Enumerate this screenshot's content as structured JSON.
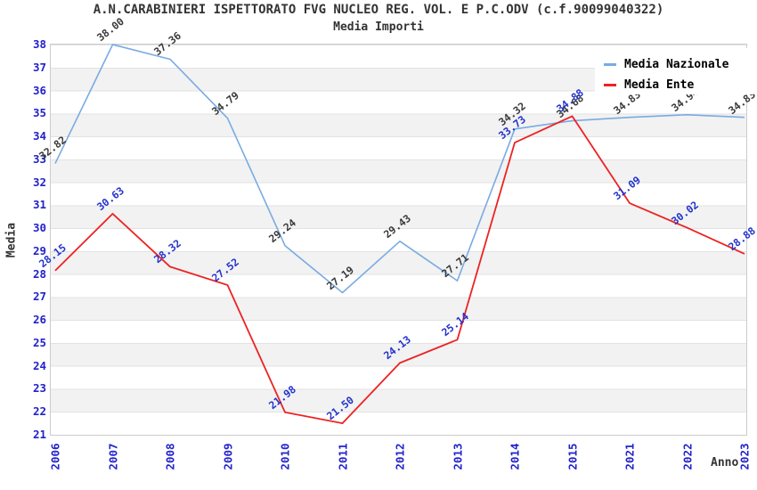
{
  "title": "A.N.CARABINIERI ISPETTORATO FVG NUCLEO REG. VOL. E P.C.ODV (c.f.90099040322)",
  "subtitle": "Media Importi",
  "legend": [
    {
      "label": "Media Nazionale",
      "color": "#79abe2"
    },
    {
      "label": "Media Ente",
      "color": "#ee2222"
    }
  ],
  "colors": {
    "axis_tick_labels": "#2222cc",
    "gridline": "#e2e2e2",
    "stripe_band": "#f2f2f2",
    "plot_border": "#cccccc",
    "title_text": "#333333",
    "nazionale_value_labels": "#3a3a3a",
    "ente_value_labels": "#2233cc"
  },
  "chart_data": {
    "type": "line",
    "title": "A.N.CARABINIERI ISPETTORATO FVG NUCLEO REG. VOL. E P.C.ODV (c.f.90099040322)",
    "subtitle": "Media Importi",
    "xlabel": "Anno",
    "ylabel": "Media",
    "categories": [
      "2006",
      "2007",
      "2008",
      "2009",
      "2010",
      "2011",
      "2012",
      "2013",
      "2014",
      "2015",
      "2021",
      "2022",
      "2023"
    ],
    "series": [
      {
        "name": "Media Nazionale",
        "color": "#79abe2",
        "label_color": "#3a3a3a",
        "stroke_width": 1.6,
        "values": [
          32.82,
          38.0,
          37.36,
          34.79,
          29.24,
          27.19,
          29.43,
          27.71,
          34.32,
          34.68,
          34.83,
          34.94,
          34.83
        ]
      },
      {
        "name": "Media Ente",
        "color": "#ee2222",
        "label_color": "#2233cc",
        "stroke_width": 1.8,
        "values": [
          28.15,
          30.63,
          28.32,
          27.52,
          21.98,
          21.5,
          24.13,
          25.14,
          33.73,
          34.88,
          31.09,
          30.02,
          28.88
        ]
      }
    ],
    "ylim": [
      21,
      38
    ],
    "y_ticks": [
      21,
      22,
      23,
      24,
      25,
      26,
      27,
      28,
      29,
      30,
      31,
      32,
      33,
      34,
      35,
      36,
      37,
      38
    ],
    "grid": "horizontal-stripes",
    "legend_position": "top-right",
    "point_labels": "each point labeled with value, rotated"
  }
}
